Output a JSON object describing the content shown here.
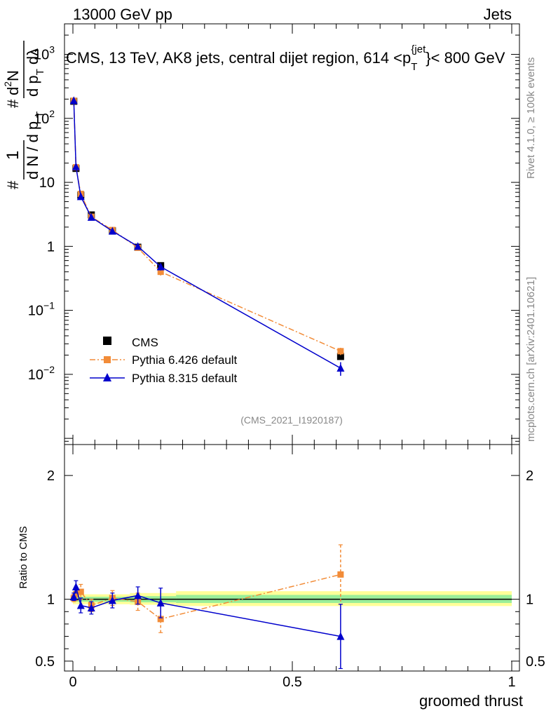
{
  "header": {
    "energy_label": "13000 GeV pp",
    "category_label": "Jets",
    "side_text_rivet": "Rivet 4.1.0, ≥ 100k events",
    "side_text_source": "mcplots.cern.ch [arXiv:2401.10621]",
    "analysis_id": "(CMS_2021_I1920187)"
  },
  "chart_data": {
    "type": "line",
    "title": "CMS, 13 TeV, AK8 jets, central dijet region, 614 <p_T^{jet}< 800 GeV",
    "title_parts": {
      "prefix": "CMS, 13 TeV, AK8 jets, central dijet region, 614 <p",
      "sub": "T",
      "sup": "{jet",
      "close": "}",
      "suffix": "< 800 GeV"
    },
    "ylabel": "1/dN/dp_T d²N/dp_T dλ",
    "ylabel_parts": {
      "hash": "#",
      "num": "1",
      "den": "d N / d p",
      "sub": "T",
      "hash2": "#",
      "num2a": "d",
      "num2b": "N",
      "sup2": "2",
      "den2": "d p",
      "sub2": "T",
      "den2b": " dλ"
    },
    "xlabel": "groomed thrust",
    "xlim": [
      0,
      1
    ],
    "ylim_log": [
      0.0008,
      3000
    ],
    "y_ticks": [
      {
        "value": 0.01,
        "base": "10",
        "exp": "−2"
      },
      {
        "value": 0.1,
        "base": "10",
        "exp": "−1"
      },
      {
        "value": 1,
        "label": "1"
      },
      {
        "value": 10,
        "label": "10"
      },
      {
        "value": 100,
        "base": "10",
        "exp": "2"
      },
      {
        "value": 1000,
        "base": "10",
        "exp": "3"
      }
    ],
    "x_ticks": [
      {
        "value": 0,
        "label": "0"
      },
      {
        "value": 0.5,
        "label": "0.5"
      },
      {
        "value": 1,
        "label": "1"
      }
    ],
    "x": [
      0.002,
      0.007,
      0.018,
      0.042,
      0.09,
      0.148,
      0.2,
      0.61
    ],
    "series": [
      {
        "name": "CMS",
        "color": "#000000",
        "style": "markers",
        "values": [
          185,
          16.5,
          6.3,
          3.1,
          1.75,
          0.97,
          0.5,
          0.019
        ]
      },
      {
        "name": "Pythia 6.426 default",
        "color": "#f28c38",
        "style": "dashdot",
        "values": [
          188,
          17.2,
          6.6,
          2.9,
          1.8,
          0.95,
          0.4,
          0.023
        ],
        "errors": [
          6,
          0.8,
          0.4,
          0.15,
          0.08,
          0.07,
          0.05,
          0.003
        ]
      },
      {
        "name": "Pythia 8.315 default",
        "color": "#0000cc",
        "style": "solid",
        "values": [
          190,
          17.6,
          6.0,
          2.85,
          1.73,
          1.0,
          0.48,
          0.0125
        ],
        "errors": [
          6,
          0.8,
          0.4,
          0.15,
          0.08,
          0.07,
          0.06,
          0.003
        ]
      }
    ],
    "ratio": {
      "ylabel": "Ratio to CMS",
      "ylim": [
        0.42,
        2.25
      ],
      "y_ticks": [
        {
          "value": 0.5,
          "label": "0.5"
        },
        {
          "value": 1,
          "label": "1"
        },
        {
          "value": 2,
          "label": "2"
        }
      ],
      "band_outer": [
        {
          "x0": 0,
          "x1": 0.13,
          "lo": 0.96,
          "hi": 1.04
        },
        {
          "x0": 0.13,
          "x1": 0.235,
          "lo": 0.955,
          "hi": 1.05
        },
        {
          "x0": 0.235,
          "x1": 1.0,
          "lo": 0.945,
          "hi": 1.065
        }
      ],
      "band_inner": [
        {
          "x0": 0,
          "x1": 0.13,
          "lo": 0.98,
          "hi": 1.02
        },
        {
          "x0": 0.13,
          "x1": 0.235,
          "lo": 0.975,
          "hi": 1.025
        },
        {
          "x0": 0.235,
          "x1": 1.0,
          "lo": 0.97,
          "hi": 1.035
        }
      ],
      "series": [
        {
          "name": "Pythia 6.426 default",
          "color": "#f28c38",
          "style": "dashdot",
          "values": [
            1.01,
            1.04,
            1.06,
            0.95,
            1.01,
            0.98,
            0.84,
            1.2
          ],
          "errors": [
            0.03,
            0.05,
            0.06,
            0.05,
            0.06,
            0.07,
            0.11,
            0.24
          ]
        },
        {
          "name": "Pythia 8.315 default",
          "color": "#0000cc",
          "style": "solid",
          "values": [
            1.02,
            1.1,
            0.95,
            0.93,
            0.99,
            1.03,
            0.97,
            0.7
          ],
          "errors": [
            0.03,
            0.05,
            0.06,
            0.05,
            0.06,
            0.07,
            0.12,
            0.26
          ]
        }
      ]
    }
  }
}
